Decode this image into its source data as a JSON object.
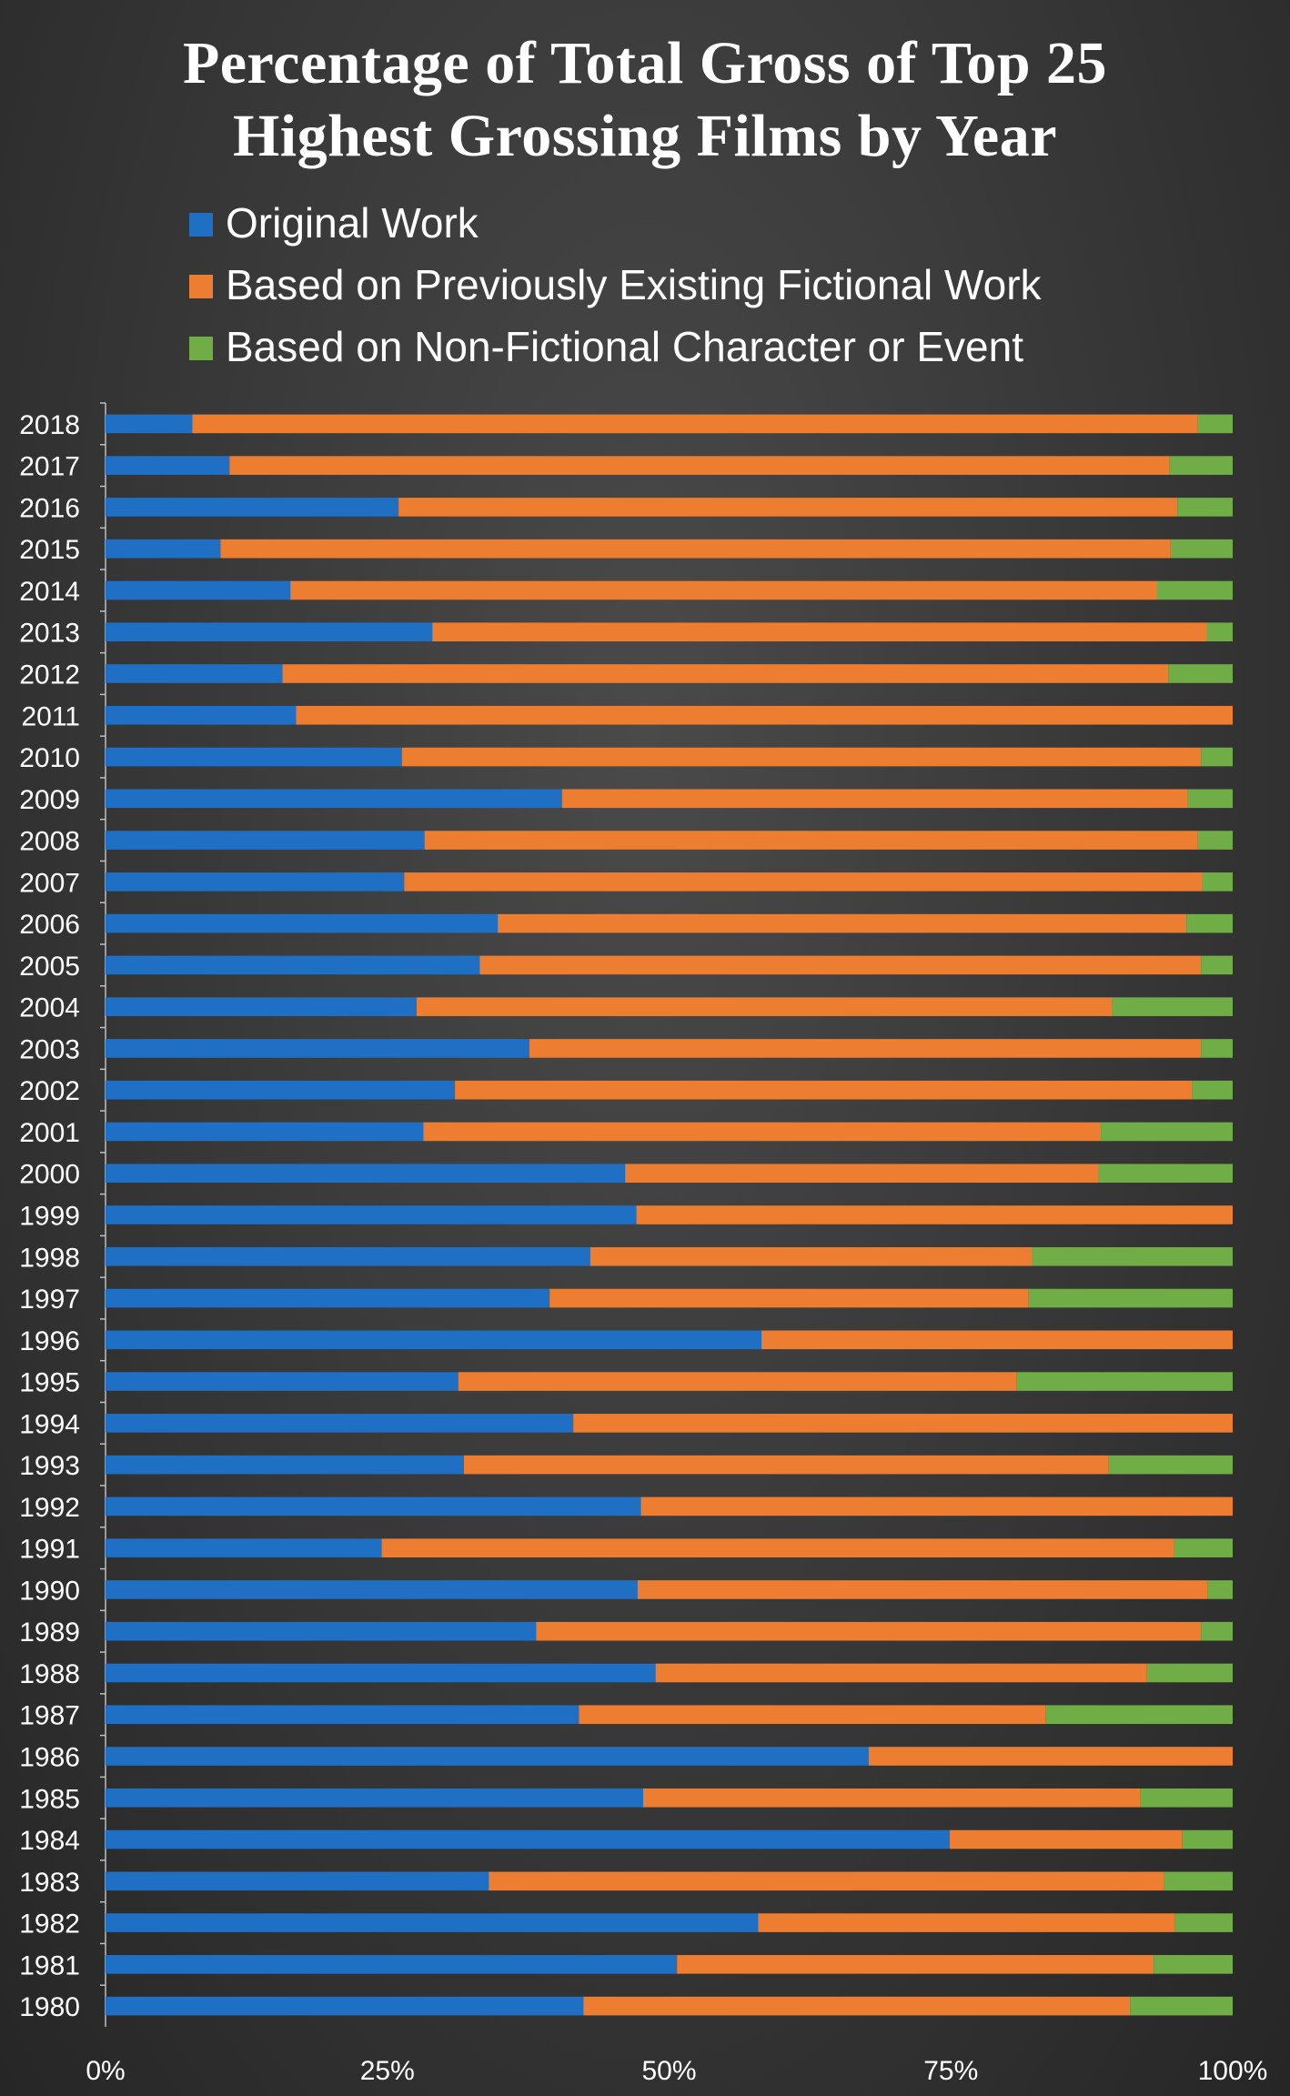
{
  "title_lines": [
    "Percentage of Total Gross of Top 25",
    "Highest Grossing Films by Year"
  ],
  "colors": {
    "original": "#1f6fc4",
    "fictional": "#ed7d31",
    "nonfictional": "#70ad47",
    "text": "#ffffff",
    "axis": "#bfbfbf"
  },
  "chart_data": {
    "type": "bar",
    "orientation": "horizontal",
    "stacked": true,
    "normalized": true,
    "title": "Percentage of Total Gross of Top 25 Highest Grossing Films by Year",
    "categories": [
      "2018",
      "2017",
      "2016",
      "2015",
      "2014",
      "2013",
      "2012",
      "2011",
      "2010",
      "2009",
      "2008",
      "2007",
      "2006",
      "2005",
      "2004",
      "2003",
      "2002",
      "2001",
      "2000",
      "1999",
      "1998",
      "1997",
      "1996",
      "1995",
      "1994",
      "1993",
      "1992",
      "1991",
      "1990",
      "1989",
      "1988",
      "1987",
      "1986",
      "1985",
      "1984",
      "1983",
      "1982",
      "1981",
      "1980"
    ],
    "series": [
      {
        "name": "Original Work",
        "color": "#1f6fc4",
        "values": [
          7.7,
          11.0,
          26.0,
          10.2,
          16.4,
          29.0,
          15.7,
          16.9,
          26.3,
          40.5,
          28.3,
          26.5,
          34.8,
          33.2,
          27.6,
          37.6,
          31.0,
          28.2,
          46.1,
          47.1,
          43.0,
          39.4,
          58.2,
          31.3,
          41.5,
          31.8,
          47.5,
          24.5,
          47.2,
          38.2,
          48.8,
          42.0,
          67.7,
          47.7,
          74.9,
          34.0,
          57.9,
          50.7,
          42.4
        ]
      },
      {
        "name": "Based on Previously Existing Fictional Work",
        "color": "#ed7d31",
        "values": [
          89.2,
          83.4,
          69.1,
          84.3,
          76.9,
          68.7,
          78.6,
          83.1,
          70.9,
          55.5,
          68.6,
          70.8,
          61.1,
          64.0,
          61.7,
          59.6,
          65.4,
          60.1,
          42.0,
          52.9,
          39.2,
          42.5,
          41.8,
          49.5,
          58.5,
          57.2,
          52.5,
          70.3,
          50.6,
          59.0,
          43.6,
          41.4,
          32.3,
          44.1,
          20.6,
          59.9,
          37.0,
          42.3,
          48.5
        ]
      },
      {
        "name": "Based on Non-Fictional Character or Event",
        "color": "#70ad47",
        "values": [
          3.1,
          5.6,
          4.9,
          5.5,
          6.7,
          2.3,
          5.7,
          0.0,
          2.8,
          4.0,
          3.1,
          2.7,
          4.1,
          2.8,
          10.7,
          2.8,
          3.6,
          11.7,
          11.9,
          0.0,
          17.8,
          18.1,
          0.0,
          19.2,
          0.0,
          11.0,
          0.0,
          5.2,
          2.2,
          2.8,
          7.6,
          16.6,
          0.0,
          8.2,
          4.5,
          6.1,
          5.1,
          7.0,
          9.1
        ]
      }
    ],
    "xlim": [
      0,
      100
    ],
    "xticks": [
      "0%",
      "25%",
      "50%",
      "75%",
      "100%"
    ],
    "legend_position": "top-left",
    "grid": false
  }
}
